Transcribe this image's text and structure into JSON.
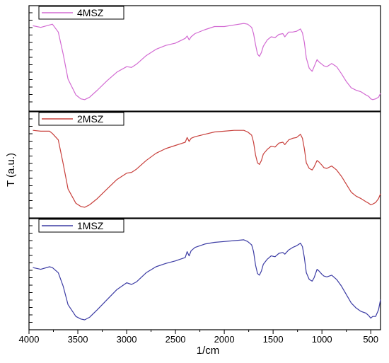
{
  "chart_data": {
    "type": "line",
    "title": "",
    "xlabel": "1/cm",
    "ylabel": "T (a.u.)",
    "xlim": [
      4000,
      400
    ],
    "x_ticks": [
      "4000",
      "3500",
      "3000",
      "2500",
      "2000",
      "1500",
      "1000",
      "500"
    ],
    "grid": false,
    "layout": "three vertically stacked panels sharing the x-axis",
    "series": [
      {
        "name": "4MSZ",
        "color": "#d26ad2",
        "x": [
          3960,
          3880,
          3790,
          3760,
          3700,
          3650,
          3600,
          3520,
          3470,
          3430,
          3380,
          3300,
          3200,
          3100,
          3000,
          2950,
          2900,
          2800,
          2700,
          2600,
          2500,
          2400,
          2380,
          2360,
          2340,
          2300,
          2200,
          2100,
          2000,
          1900,
          1800,
          1760,
          1720,
          1700,
          1680,
          1660,
          1640,
          1620,
          1600,
          1560,
          1520,
          1480,
          1440,
          1400,
          1380,
          1340,
          1300,
          1260,
          1220,
          1200,
          1180,
          1160,
          1130,
          1100,
          1080,
          1050,
          1030,
          1000,
          980,
          950,
          900,
          850,
          800,
          750,
          700,
          650,
          600,
          550,
          520,
          500,
          480,
          450,
          420,
          400
        ],
        "y": [
          4,
          6,
          3,
          2,
          12,
          40,
          72,
          92,
          97,
          98,
          95,
          86,
          74,
          63,
          56,
          57,
          53,
          42,
          34,
          29,
          26,
          20,
          17,
          22,
          18,
          14,
          9,
          5,
          5,
          3,
          1,
          2,
          6,
          14,
          28,
          40,
          43,
          38,
          30,
          22,
          18,
          19,
          15,
          14,
          18,
          12,
          12,
          11,
          8,
          13,
          25,
          45,
          58,
          62,
          56,
          47,
          50,
          53,
          55,
          56,
          52,
          56,
          65,
          75,
          83,
          86,
          88,
          92,
          94,
          97,
          98,
          97,
          95,
          90
        ]
      },
      {
        "name": "2MSZ",
        "color": "#c8403c",
        "x": [
          3960,
          3880,
          3790,
          3760,
          3700,
          3650,
          3600,
          3520,
          3470,
          3430,
          3380,
          3300,
          3200,
          3100,
          3000,
          2950,
          2900,
          2800,
          2700,
          2600,
          2500,
          2400,
          2380,
          2360,
          2340,
          2300,
          2200,
          2100,
          2000,
          1900,
          1800,
          1760,
          1720,
          1700,
          1680,
          1660,
          1640,
          1620,
          1600,
          1560,
          1520,
          1480,
          1440,
          1400,
          1380,
          1340,
          1300,
          1260,
          1220,
          1200,
          1180,
          1160,
          1130,
          1100,
          1080,
          1050,
          1030,
          1000,
          980,
          950,
          900,
          850,
          800,
          750,
          700,
          650,
          600,
          550,
          520,
          500,
          480,
          450,
          420,
          400
        ],
        "y": [
          2,
          3,
          3,
          6,
          14,
          44,
          76,
          94,
          98,
          99,
          96,
          88,
          76,
          64,
          56,
          55,
          51,
          40,
          31,
          25,
          21,
          17,
          11,
          16,
          12,
          10,
          7,
          4,
          3,
          2,
          2,
          4,
          8,
          17,
          33,
          43,
          45,
          40,
          32,
          26,
          22,
          23,
          18,
          17,
          20,
          14,
          12,
          11,
          7,
          12,
          25,
          43,
          50,
          52,
          48,
          40,
          42,
          46,
          49,
          50,
          47,
          52,
          60,
          70,
          80,
          85,
          88,
          92,
          94,
          96,
          95,
          93,
          88,
          82
        ]
      },
      {
        "name": "1MSZ",
        "color": "#3c3ca4",
        "x": [
          3960,
          3880,
          3790,
          3760,
          3700,
          3650,
          3600,
          3520,
          3470,
          3430,
          3380,
          3300,
          3200,
          3100,
          3000,
          2950,
          2900,
          2800,
          2700,
          2600,
          2500,
          2400,
          2380,
          2360,
          2340,
          2300,
          2200,
          2100,
          2000,
          1900,
          1800,
          1760,
          1720,
          1700,
          1680,
          1660,
          1640,
          1620,
          1600,
          1560,
          1520,
          1480,
          1440,
          1400,
          1380,
          1340,
          1300,
          1260,
          1220,
          1200,
          1180,
          1160,
          1130,
          1100,
          1080,
          1050,
          1030,
          1000,
          980,
          950,
          900,
          850,
          800,
          750,
          700,
          650,
          600,
          550,
          520,
          500,
          480,
          450,
          420,
          400
        ],
        "y": [
          38,
          40,
          37,
          38,
          44,
          60,
          82,
          96,
          99,
          100,
          97,
          88,
          76,
          64,
          56,
          58,
          55,
          44,
          37,
          33,
          30,
          26,
          19,
          24,
          18,
          14,
          10,
          8,
          7,
          6,
          5,
          7,
          11,
          19,
          35,
          45,
          47,
          42,
          34,
          28,
          24,
          25,
          21,
          20,
          22,
          17,
          14,
          12,
          9,
          13,
          26,
          44,
          52,
          54,
          50,
          40,
          42,
          46,
          48,
          49,
          47,
          52,
          60,
          70,
          80,
          86,
          90,
          92,
          95,
          98,
          96,
          96,
          88,
          76
        ]
      }
    ]
  }
}
